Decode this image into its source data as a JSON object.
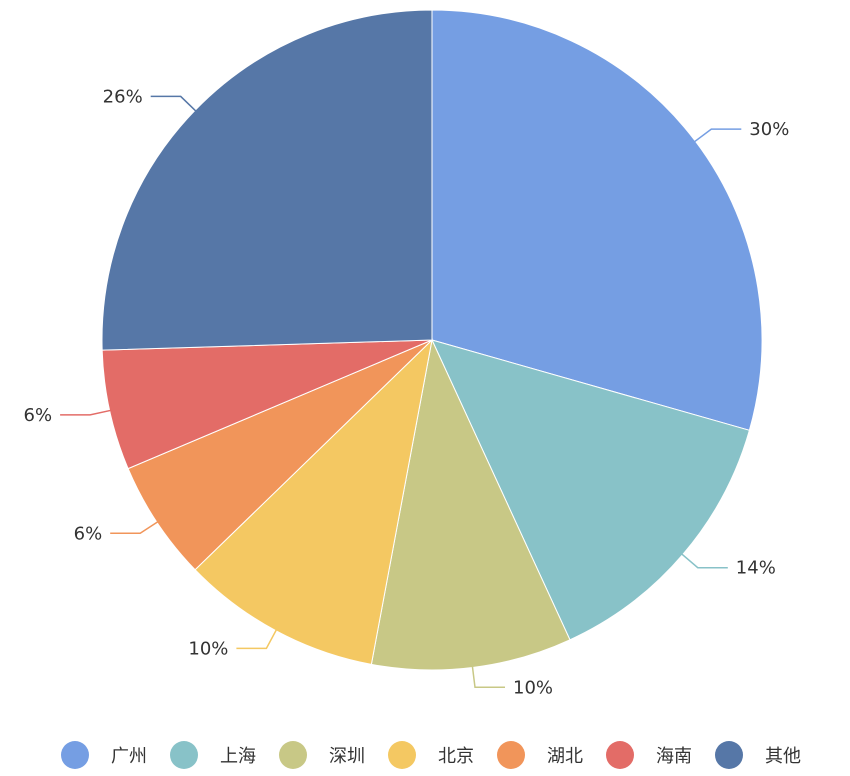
{
  "chart_data": {
    "type": "pie",
    "title": "",
    "legend_position": "bottom",
    "label_format": "percent",
    "slices": [
      {
        "name": "广州",
        "value": 30,
        "label": "30%",
        "color": "#759ee3"
      },
      {
        "name": "上海",
        "value": 14,
        "label": "14%",
        "color": "#88c2c8"
      },
      {
        "name": "深圳",
        "value": 10,
        "label": "10%",
        "color": "#c8c886"
      },
      {
        "name": "北京",
        "value": 10,
        "label": "10%",
        "color": "#f4c862"
      },
      {
        "name": "湖北",
        "value": 6,
        "label": "6%",
        "color": "#f1955a"
      },
      {
        "name": "海南",
        "value": 6,
        "label": "6%",
        "color": "#e36c67"
      },
      {
        "name": "其他",
        "value": 26,
        "label": "26%",
        "color": "#5677a7"
      }
    ]
  }
}
